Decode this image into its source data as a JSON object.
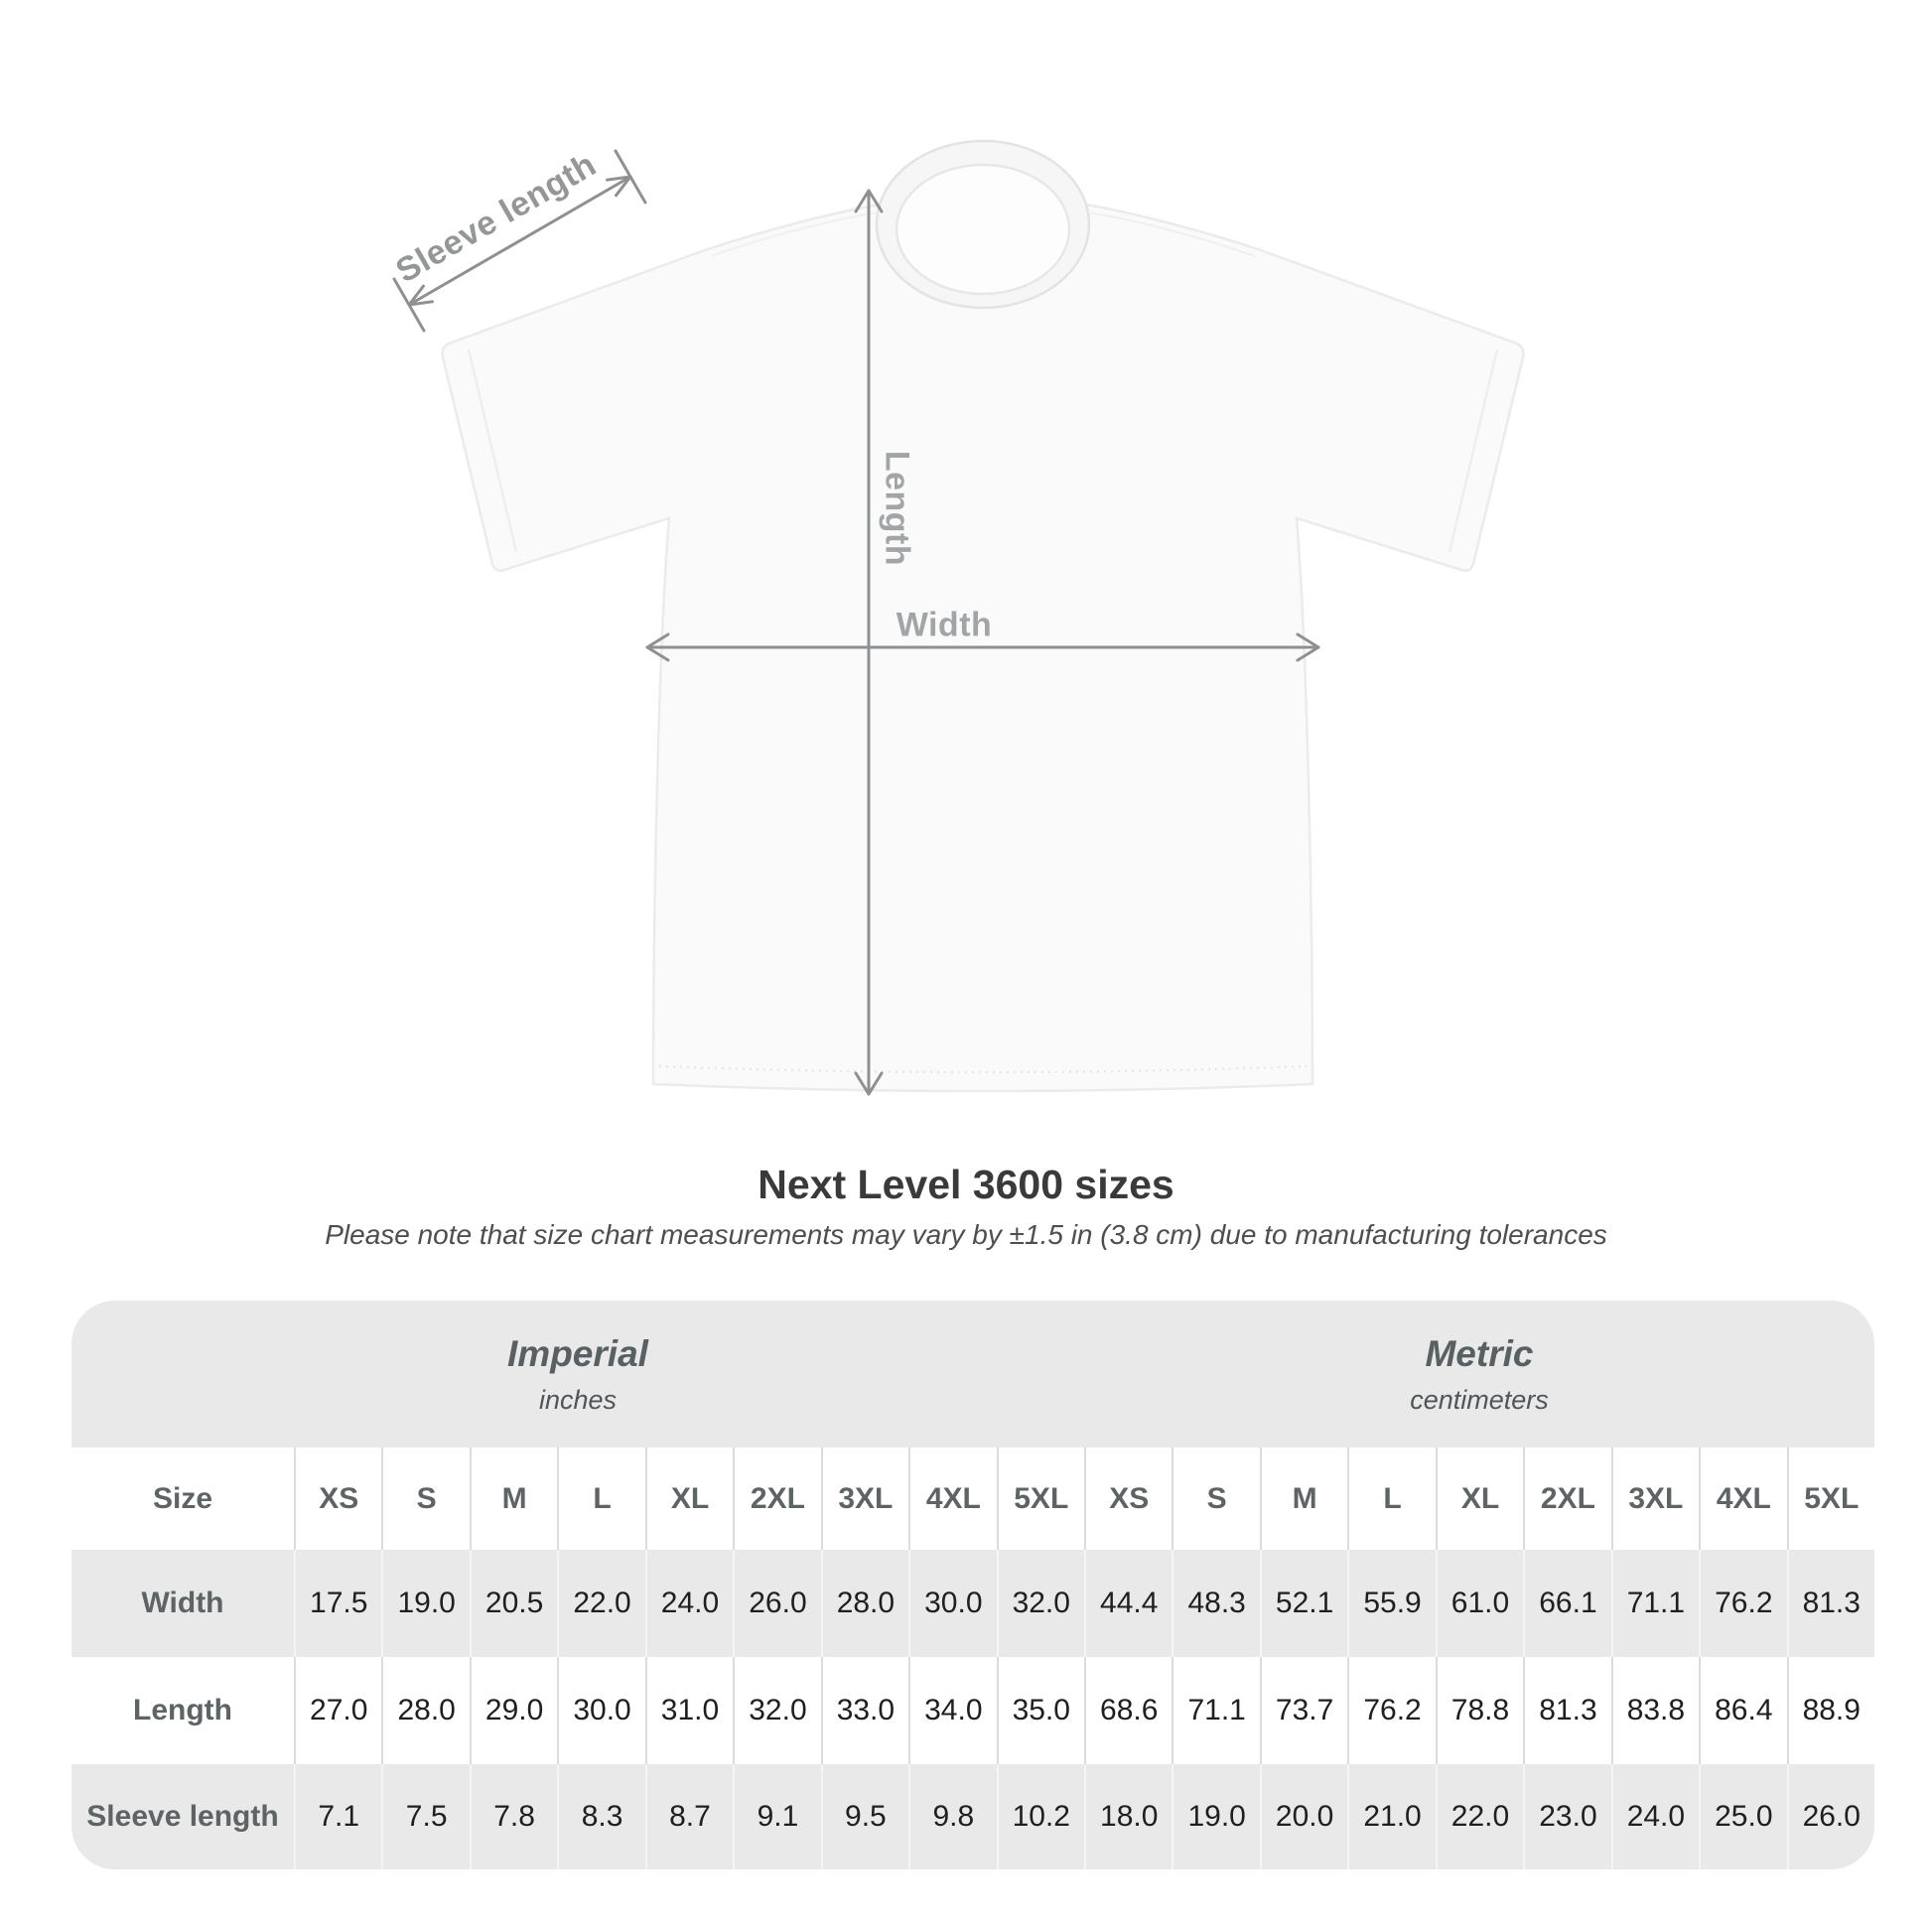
{
  "shirt_diagram": {
    "sleeve_length_label": "Sleeve length",
    "length_label": "Length",
    "width_label": "Width"
  },
  "heading": {
    "title": "Next Level 3600 sizes",
    "subtitle": "Please note that size chart measurements may vary by ±1.5 in (3.8 cm) due to manufacturing tolerances"
  },
  "size_table": {
    "unit_groups": [
      {
        "label": "Imperial",
        "sublabel": "inches"
      },
      {
        "label": "Metric",
        "sublabel": "centimeters"
      }
    ],
    "header": {
      "label": "Size",
      "columns": [
        "XS",
        "S",
        "M",
        "L",
        "XL",
        "2XL",
        "3XL",
        "4XL",
        "5XL",
        "XS",
        "S",
        "M",
        "L",
        "XL",
        "2XL",
        "3XL",
        "4XL",
        "5XL"
      ]
    },
    "rows": [
      {
        "label": "Width",
        "values": [
          "17.5",
          "19.0",
          "20.5",
          "22.0",
          "24.0",
          "26.0",
          "28.0",
          "30.0",
          "32.0",
          "44.4",
          "48.3",
          "52.1",
          "55.9",
          "61.0",
          "66.1",
          "71.1",
          "76.2",
          "81.3"
        ]
      },
      {
        "label": "Length",
        "values": [
          "27.0",
          "28.0",
          "29.0",
          "30.0",
          "31.0",
          "32.0",
          "33.0",
          "34.0",
          "35.0",
          "68.6",
          "71.1",
          "73.7",
          "76.2",
          "78.8",
          "81.3",
          "83.8",
          "86.4",
          "88.9"
        ]
      },
      {
        "label": "Sleeve length",
        "values": [
          "7.1",
          "7.5",
          "7.8",
          "8.3",
          "8.7",
          "9.1",
          "9.5",
          "9.8",
          "10.2",
          "18.0",
          "19.0",
          "20.0",
          "21.0",
          "22.0",
          "23.0",
          "24.0",
          "25.0",
          "26.0"
        ]
      }
    ]
  },
  "colors": {
    "background": "#ffffff",
    "table_background": "#e9e9e9",
    "dimension_line": "#8e9091",
    "shirt_fill": "#fafafa",
    "title_text": "#3a3a3a",
    "table_value_text": "#1f1f1f",
    "table_label_text": "#5e6366"
  }
}
